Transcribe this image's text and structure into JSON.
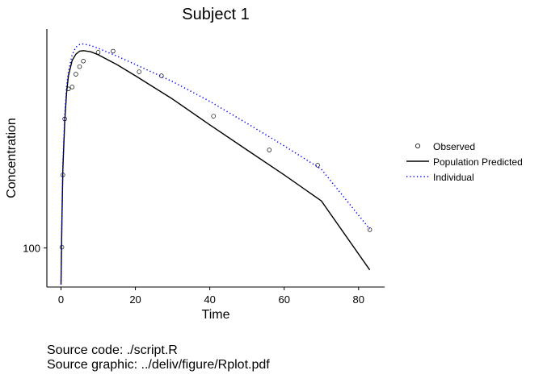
{
  "chart_data": {
    "type": "line",
    "title": "Subject 1",
    "xlabel": "Time",
    "ylabel": "Concentration",
    "y_scale": "log",
    "xlim": [
      -3.8,
      87
    ],
    "ylim": [
      60,
      1750
    ],
    "x_ticks": [
      0,
      20,
      40,
      60,
      80
    ],
    "y_ticks": [
      100
    ],
    "grid": false,
    "legend_position": "right",
    "series": [
      {
        "name": "Observed",
        "kind": "points",
        "color": "#000000",
        "x": [
          0.25,
          0.5,
          1,
          2,
          3,
          4,
          5,
          6,
          10,
          14,
          21,
          27,
          41,
          56,
          69,
          83
        ],
        "y": [
          101,
          260,
          540,
          800,
          820,
          970,
          1070,
          1150,
          1290,
          1310,
          1000,
          950,
          560,
          360,
          295,
          127
        ]
      },
      {
        "name": "Population Predicted",
        "kind": "line",
        "color": "#000000",
        "x": [
          0,
          0.25,
          0.5,
          1,
          1.5,
          2,
          3,
          4,
          5,
          6,
          8,
          10,
          15,
          20,
          30,
          40,
          50,
          60,
          70,
          83
        ],
        "y": [
          62,
          140,
          280,
          520,
          760,
          950,
          1160,
          1260,
          1310,
          1320,
          1300,
          1250,
          1100,
          950,
          700,
          500,
          360,
          260,
          185,
          75
        ]
      },
      {
        "name": "Individual",
        "kind": "dotted",
        "color": "#0000ff",
        "x": [
          0,
          0.25,
          0.5,
          1,
          1.5,
          2,
          3,
          4,
          5,
          6,
          8,
          10,
          15,
          20,
          30,
          40,
          50,
          60,
          70,
          83
        ],
        "y": [
          62,
          150,
          300,
          560,
          820,
          1000,
          1250,
          1380,
          1430,
          1440,
          1410,
          1360,
          1230,
          1100,
          880,
          680,
          510,
          380,
          280,
          128
        ]
      }
    ]
  },
  "footer": {
    "source_code": "Source code: ./script.R",
    "source_graphic": "Source graphic: ../deliv/figure/Rplot.pdf"
  }
}
